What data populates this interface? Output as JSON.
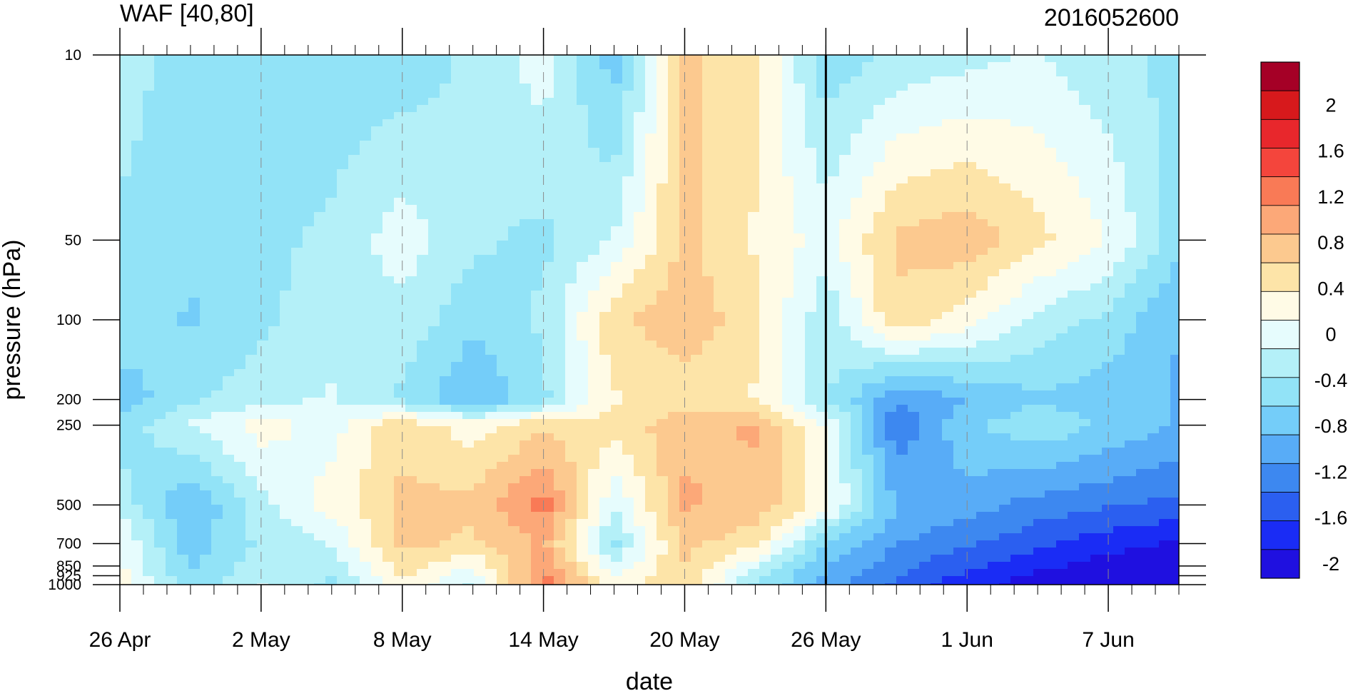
{
  "chart_data": {
    "type": "heatmap",
    "subtype": "filled-contour",
    "title": "WAF [40,80]",
    "title_right": "2016052600",
    "xlabel": "date",
    "ylabel": "pressure (hPa)",
    "y_scale": "log",
    "y_reversed": true,
    "ylim": [
      1000,
      10
    ],
    "y_ticks": [
      10,
      50,
      100,
      200,
      250,
      500,
      700,
      850,
      925,
      1000
    ],
    "y_tick_labels": [
      "10",
      "50",
      "100",
      "200",
      "250",
      "500",
      "700",
      "850",
      "925",
      "1000"
    ],
    "xlim": [
      "2016-04-26",
      "2016-06-10"
    ],
    "x_ticks": [
      "2016-04-26",
      "2016-05-02",
      "2016-05-08",
      "2016-05-14",
      "2016-05-20",
      "2016-05-26",
      "2016-06-01",
      "2016-06-07"
    ],
    "x_tick_labels": [
      "26 Apr",
      "2 May",
      "8 May",
      "14 May",
      "20 May",
      "26 May",
      "1 Jun",
      "7 Jun"
    ],
    "x_minor_tick": "daily",
    "reference_line": "2016-05-26",
    "grid": "dashed vertical lines at labeled dates",
    "colorbar": {
      "placement": "right",
      "labels": [
        "2",
        "1.6",
        "1.2",
        "0.8",
        "0.4",
        "0",
        "-0.4",
        "-0.8",
        "-1.2",
        "-1.6",
        "-2"
      ],
      "colors": [
        "#a50026",
        "#d7191c",
        "#e8272c",
        "#f4453c",
        "#f97a56",
        "#fca878",
        "#fcc98f",
        "#fde4a8",
        "#fffbe6",
        "#e6fcfd",
        "#b4f0f8",
        "#92e3f7",
        "#74cdf9",
        "#58acf7",
        "#3d88f0",
        "#2b5ff0",
        "#1a2cf5",
        "#1f10e0"
      ]
    },
    "dates": [
      "2016-04-26",
      "2016-04-29",
      "2016-05-02",
      "2016-05-05",
      "2016-05-08",
      "2016-05-11",
      "2016-05-14",
      "2016-05-17",
      "2016-05-20",
      "2016-05-23",
      "2016-05-26",
      "2016-05-29",
      "2016-06-01",
      "2016-06-04",
      "2016-06-07",
      "2016-06-10"
    ],
    "levels": [
      1000,
      700,
      500,
      250,
      200,
      100,
      50,
      10
    ],
    "values": [
      [
        0.1,
        -0.6,
        -0.2,
        -0.5,
        0.2,
        -0.3,
        1.0,
        0.1,
        0.4,
        -0.5,
        -1.0,
        -1.4,
        -1.7,
        -1.9,
        -2.0,
        -2.0
      ],
      [
        0.0,
        -0.8,
        -0.4,
        -0.2,
        0.5,
        0.4,
        0.7,
        -0.5,
        0.5,
        0.3,
        -0.7,
        -1.1,
        -1.3,
        -1.5,
        -1.7,
        -1.8
      ],
      [
        -0.3,
        -0.9,
        -0.3,
        0.1,
        0.5,
        0.5,
        1.0,
        -0.2,
        0.7,
        0.6,
        0.1,
        -0.9,
        -1.0,
        -1.2,
        -1.3,
        -1.4
      ],
      [
        -0.6,
        -0.2,
        0.1,
        -0.1,
        0.4,
        0.1,
        0.4,
        0.3,
        0.6,
        0.7,
        0.0,
        -1.3,
        -0.7,
        -0.5,
        -0.7,
        -0.9
      ],
      [
        -0.8,
        -0.5,
        -0.3,
        -0.2,
        -0.5,
        -0.9,
        -0.5,
        0.2,
        0.3,
        0.2,
        -0.4,
        -1.1,
        -0.9,
        -0.7,
        -0.8,
        -0.9
      ],
      [
        -0.5,
        -0.7,
        -0.5,
        -0.3,
        -0.3,
        -0.6,
        -0.4,
        0.4,
        0.6,
        0.3,
        -0.4,
        0.4,
        0.1,
        -0.3,
        -0.5,
        -0.9
      ],
      [
        -0.5,
        -0.6,
        -0.5,
        -0.4,
        -0.1,
        -0.4,
        -0.5,
        -0.2,
        0.5,
        0.2,
        -0.1,
        0.5,
        0.6,
        0.3,
        0.0,
        -0.6
      ],
      [
        -0.3,
        -0.6,
        -0.5,
        -0.6,
        -0.6,
        -0.4,
        -0.1,
        -0.8,
        0.5,
        0.3,
        -0.6,
        -0.4,
        -0.3,
        -0.2,
        -0.4,
        -0.5
      ]
    ]
  }
}
